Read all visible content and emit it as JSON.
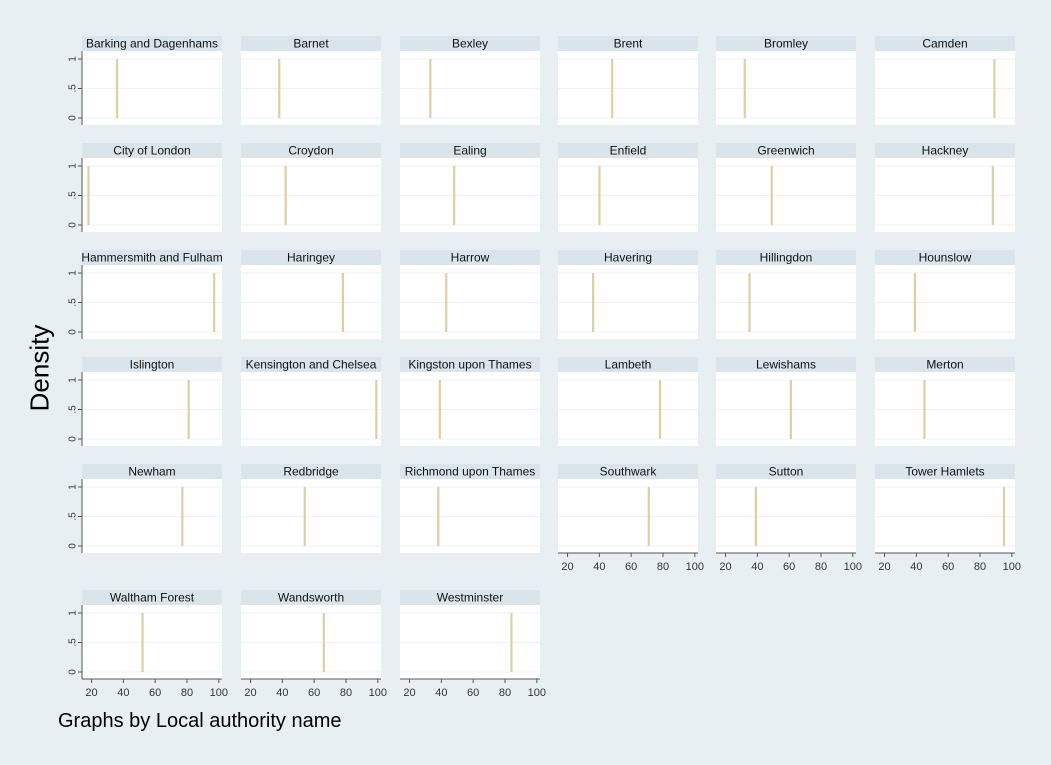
{
  "chart_data": {
    "type": "bar",
    "ylabel": "Density",
    "note": "Graphs by Local authority name",
    "xticks": [
      20,
      40,
      60,
      80,
      100
    ],
    "yticks": [
      0,
      0.5,
      1
    ],
    "ytick_labels": [
      "0",
      ".5",
      "1"
    ],
    "xlim": [
      14,
      102
    ],
    "ylim": [
      0,
      1
    ],
    "bar_color": "#d8d1a2",
    "header_color": "#d9e5eb",
    "panels": [
      {
        "name": "Barking and Dagenhams",
        "x": 36,
        "density": 1
      },
      {
        "name": "Barnet",
        "x": 38,
        "density": 1
      },
      {
        "name": "Bexley",
        "x": 33,
        "density": 1
      },
      {
        "name": "Brent",
        "x": 48,
        "density": 1
      },
      {
        "name": "Bromley",
        "x": 32,
        "density": 1
      },
      {
        "name": "Camden",
        "x": 89,
        "density": 1
      },
      {
        "name": "City of London",
        "x": 18,
        "density": 1
      },
      {
        "name": "Croydon",
        "x": 42,
        "density": 1
      },
      {
        "name": "Ealing",
        "x": 48,
        "density": 1
      },
      {
        "name": "Enfield",
        "x": 40,
        "density": 1
      },
      {
        "name": "Greenwich",
        "x": 49,
        "density": 1
      },
      {
        "name": "Hackney",
        "x": 88,
        "density": 1
      },
      {
        "name": "Hammersmith and Fulham",
        "x": 97,
        "density": 1
      },
      {
        "name": "Haringey",
        "x": 78,
        "density": 1
      },
      {
        "name": "Harrow",
        "x": 43,
        "density": 1
      },
      {
        "name": "Havering",
        "x": 36,
        "density": 1
      },
      {
        "name": "Hillingdon",
        "x": 35,
        "density": 1
      },
      {
        "name": "Hounslow",
        "x": 39,
        "density": 1
      },
      {
        "name": "Islington",
        "x": 81,
        "density": 1
      },
      {
        "name": "Kensington and Chelsea",
        "x": 99,
        "density": 1
      },
      {
        "name": "Kingston upon Thames",
        "x": 39,
        "density": 1
      },
      {
        "name": "Lambeth",
        "x": 78,
        "density": 1
      },
      {
        "name": "Lewishams",
        "x": 61,
        "density": 1
      },
      {
        "name": "Merton",
        "x": 45,
        "density": 1
      },
      {
        "name": "Newham",
        "x": 77,
        "density": 1
      },
      {
        "name": "Redbridge",
        "x": 54,
        "density": 1
      },
      {
        "name": "Richmond upon Thames",
        "x": 38,
        "density": 1
      },
      {
        "name": "Southwark",
        "x": 71,
        "density": 1
      },
      {
        "name": "Sutton",
        "x": 39,
        "density": 1
      },
      {
        "name": "Tower Hamlets",
        "x": 95,
        "density": 1
      },
      {
        "name": "Waltham Forest",
        "x": 52,
        "density": 1
      },
      {
        "name": "Wandsworth",
        "x": 66,
        "density": 1
      },
      {
        "name": "Westminster",
        "x": 84,
        "density": 1
      }
    ]
  }
}
